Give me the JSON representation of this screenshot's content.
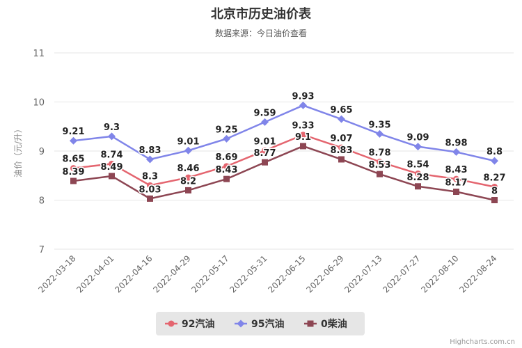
{
  "chart_data": {
    "type": "line",
    "title": "北京市历史油价表",
    "subtitle": "数据来源：今日油价查看",
    "ylabel": "油价（元/升）",
    "xlabel": "",
    "ylim": [
      7,
      11
    ],
    "yticks": [
      7,
      8,
      9,
      10,
      11
    ],
    "grid": true,
    "legend_position": "bottom",
    "x": [
      "2022-03-18",
      "2022-04-01",
      "2022-04-16",
      "2022-04-29",
      "2022-05-17",
      "2022-05-31",
      "2022-06-15",
      "2022-06-29",
      "2022-07-13",
      "2022-07-27",
      "2022-08-10",
      "2022-08-24"
    ],
    "series": [
      {
        "name": "92汽油",
        "color": "#e4656f",
        "marker": "circle",
        "values": [
          8.65,
          8.74,
          8.3,
          8.46,
          8.69,
          9.01,
          9.33,
          9.07,
          8.78,
          8.54,
          8.43,
          8.27
        ],
        "labels": [
          "8.65",
          "8.74",
          "8.3",
          "8.46",
          "8.69",
          "9.01",
          "9.33",
          "9.07",
          "8.78",
          "8.54",
          "8.43",
          "8.27"
        ]
      },
      {
        "name": "95汽油",
        "color": "#8085e9",
        "marker": "diamond",
        "values": [
          9.21,
          9.3,
          8.83,
          9.01,
          9.25,
          9.59,
          9.93,
          9.65,
          9.35,
          9.09,
          8.98,
          8.8
        ],
        "labels": [
          "9.21",
          "9.3",
          "8.83",
          "9.01",
          "9.25",
          "9.59",
          "9.93",
          "9.65",
          "9.35",
          "9.09",
          "8.98",
          "8.8"
        ]
      },
      {
        "name": "0柴油",
        "color": "#8d4653",
        "marker": "square",
        "values": [
          8.39,
          8.49,
          8.03,
          8.2,
          8.43,
          8.77,
          9.1,
          8.83,
          8.53,
          8.28,
          8.17,
          8
        ],
        "labels": [
          "8.39",
          "8.49",
          "8.03",
          "8.2",
          "8.43",
          "8.77",
          "9.1",
          "8.83",
          "8.53",
          "8.28",
          "8.17",
          "8"
        ]
      }
    ]
  },
  "credits": "Highcharts.com.cn"
}
